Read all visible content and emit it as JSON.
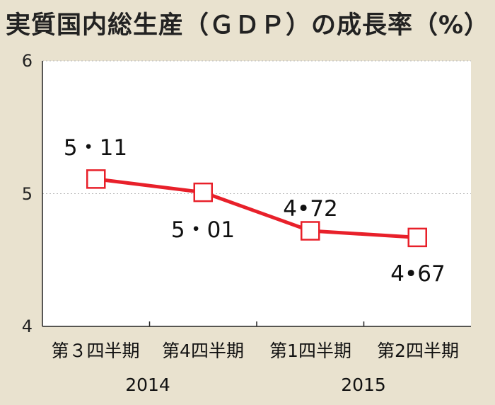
{
  "title": "実質国内総生産（ＧＤＰ）の成長率（%）",
  "chart_data": {
    "type": "line",
    "title": "実質国内総生産（ＧＤＰ）の成長率（%）",
    "categories": [
      "第３四半期",
      "第4四半期",
      "第1四半期",
      "第2四半期"
    ],
    "year_labels": [
      "2014",
      "2015"
    ],
    "y_ticks": [
      "4",
      "5",
      "6"
    ],
    "ylim": [
      4,
      6
    ],
    "grid": true,
    "series": [
      {
        "values": [
          5.11,
          5.01,
          4.72,
          4.67
        ],
        "labels": [
          "5・11",
          "5・01",
          "4•72",
          "4•67"
        ],
        "color": "#e8202a"
      }
    ]
  }
}
